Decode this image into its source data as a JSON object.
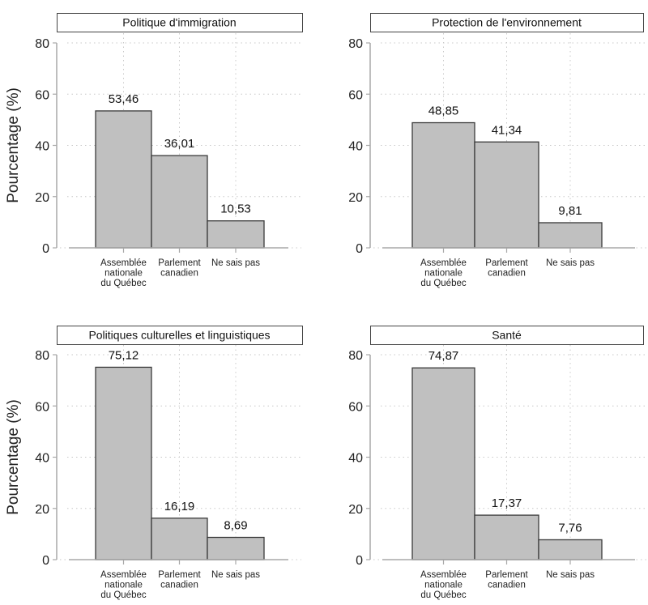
{
  "chart_data": [
    {
      "type": "bar",
      "title": "Politique d'immigration",
      "categories": [
        [
          "Assemblée",
          "nationale",
          "du Québec"
        ],
        [
          "Parlement",
          "canadien"
        ],
        [
          "Ne sais pas"
        ]
      ],
      "values": [
        53.46,
        36.01,
        10.53
      ],
      "value_labels": [
        "53,46",
        "36,01",
        "10,53"
      ],
      "ylabel": "Pourcentage (%)",
      "xlabel": "",
      "ylim": [
        0,
        80
      ],
      "yticks": [
        0,
        20,
        40,
        60,
        80
      ],
      "grid": true
    },
    {
      "type": "bar",
      "title": "Protection de l'environnement",
      "categories": [
        [
          "Assemblée",
          "nationale",
          "du Québec"
        ],
        [
          "Parlement",
          "canadien"
        ],
        [
          "Ne sais pas"
        ]
      ],
      "values": [
        48.85,
        41.34,
        9.81
      ],
      "value_labels": [
        "48,85",
        "41,34",
        "9,81"
      ],
      "ylabel": "",
      "xlabel": "",
      "ylim": [
        0,
        80
      ],
      "yticks": [
        0,
        20,
        40,
        60,
        80
      ],
      "grid": true
    },
    {
      "type": "bar",
      "title": "Politiques culturelles et linguistiques",
      "categories": [
        [
          "Assemblée",
          "nationale",
          "du Québec"
        ],
        [
          "Parlement",
          "canadien"
        ],
        [
          "Ne sais pas"
        ]
      ],
      "values": [
        75.12,
        16.19,
        8.69
      ],
      "value_labels": [
        "75,12",
        "16,19",
        "8,69"
      ],
      "ylabel": "Pourcentage (%)",
      "xlabel": "",
      "ylim": [
        0,
        80
      ],
      "yticks": [
        0,
        20,
        40,
        60,
        80
      ],
      "grid": true
    },
    {
      "type": "bar",
      "title": "Santé",
      "categories": [
        [
          "Assemblée",
          "nationale",
          "du Québec"
        ],
        [
          "Parlement",
          "canadien"
        ],
        [
          "Ne sais pas"
        ]
      ],
      "values": [
        74.87,
        17.37,
        7.76
      ],
      "value_labels": [
        "74,87",
        "17,37",
        "7,76"
      ],
      "ylabel": "",
      "xlabel": "",
      "ylim": [
        0,
        80
      ],
      "yticks": [
        0,
        20,
        40,
        60,
        80
      ],
      "grid": true
    }
  ],
  "colors": {
    "bar_fill": "#c0c0c0",
    "bar_stroke": "#3a3a3a",
    "axis": "#a8a8a8",
    "grid": "#c8c8c8",
    "title_box_stroke": "#444444"
  }
}
